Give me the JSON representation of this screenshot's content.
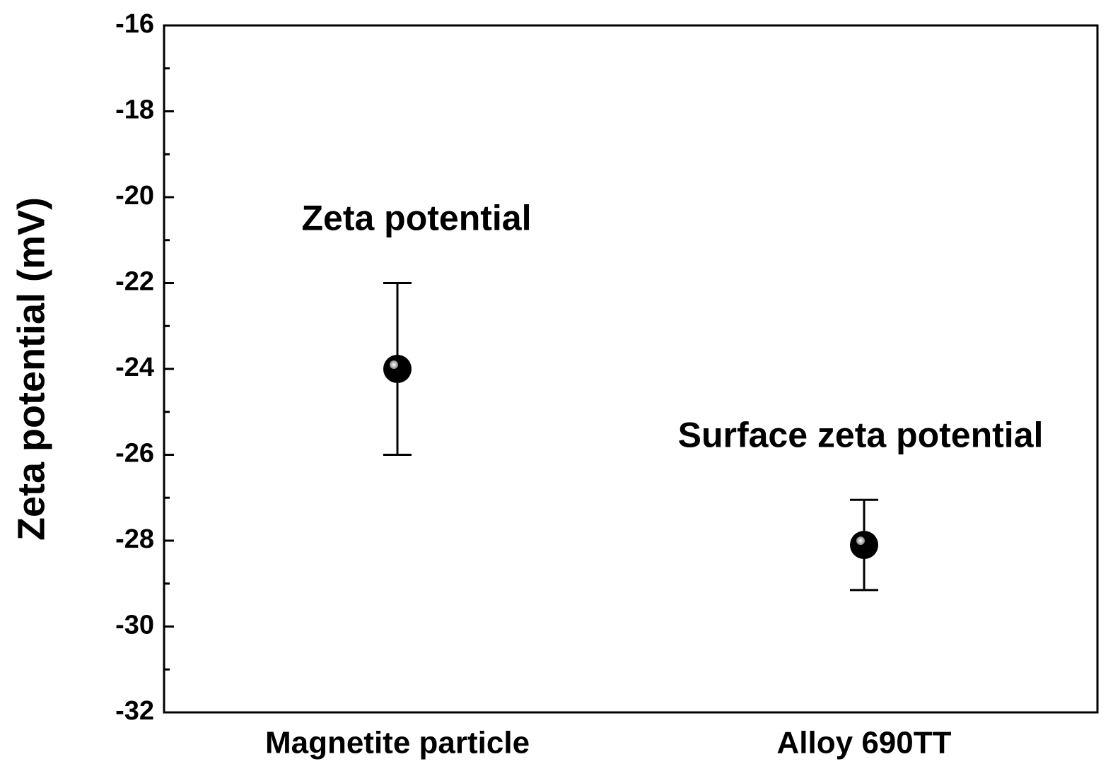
{
  "chart_data": {
    "type": "errorbar",
    "ylabel": "Zeta potential (mV)",
    "categories": [
      "Magnetite particle",
      "Alloy 690TT"
    ],
    "values": [
      -24,
      -28.1
    ],
    "errors": [
      2,
      1.05
    ],
    "annotations": [
      "Zeta potential",
      "Surface zeta potential"
    ],
    "color": "#000000",
    "ylim": [
      -32,
      -16
    ],
    "yticks": [
      -32,
      -30,
      -28,
      -26,
      -24,
      -22,
      -20,
      -18,
      -16
    ],
    "minor_yticks": [
      -31,
      -29,
      -27,
      -25,
      -23,
      -21,
      -19,
      -17
    ]
  }
}
